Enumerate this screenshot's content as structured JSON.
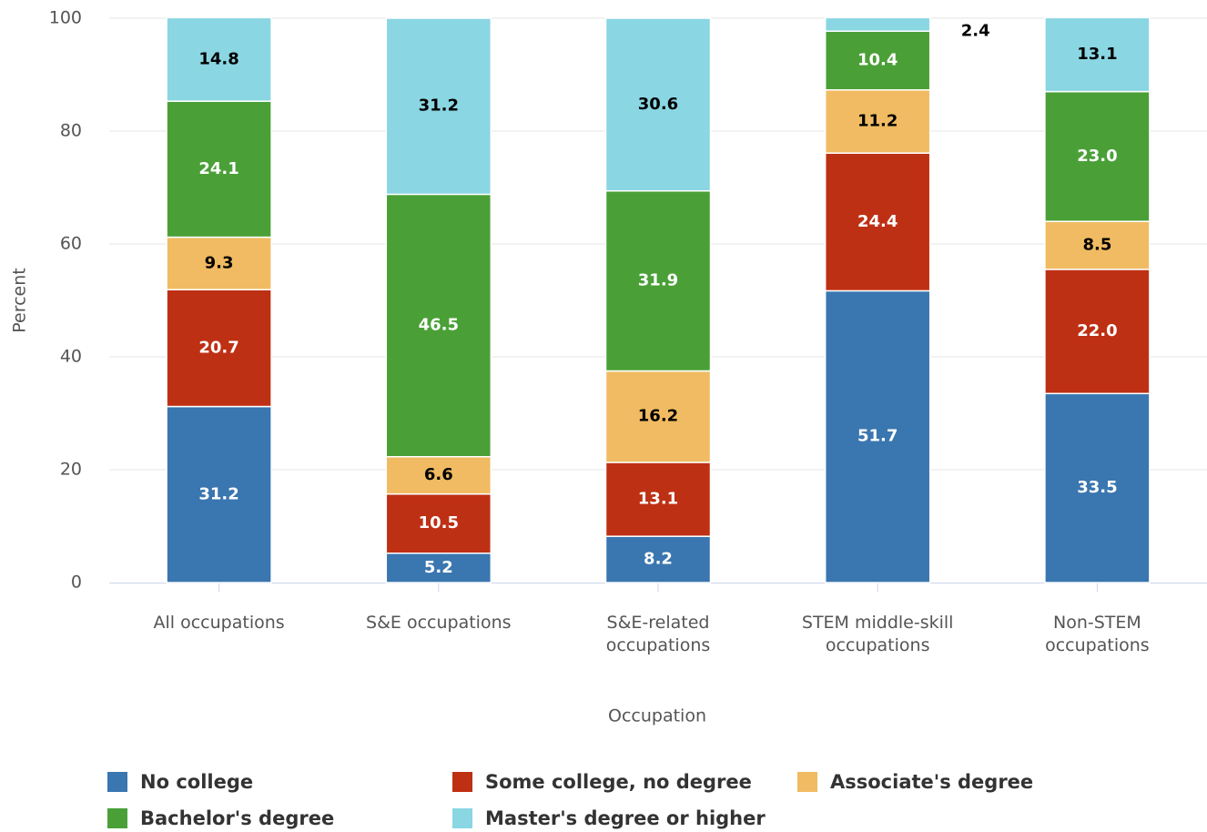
{
  "chart_data": {
    "type": "stacked_bar",
    "x_label": "Occupation",
    "y_label": "Percent",
    "categories": [
      "All occupations",
      "S&E occupations",
      "S&E-related occupations",
      "STEM middle-skill occupations",
      "Non-STEM occupations"
    ],
    "series": [
      {
        "name": "No college",
        "color": "#3a76af",
        "values": [
          31.2,
          5.2,
          8.2,
          51.7,
          33.5
        ],
        "value_labels": [
          "31.2",
          "5.2",
          "8.2",
          "51.7",
          "33.5"
        ]
      },
      {
        "name": "Some college, no degree",
        "color": "#be3014",
        "values": [
          20.7,
          10.5,
          13.1,
          24.4,
          22
        ],
        "value_labels": [
          "20.7",
          "10.5",
          "13.1",
          "24.4",
          "22.0"
        ]
      },
      {
        "name": "Associate's degree",
        "color": "#f0bb62",
        "values": [
          9.3,
          6.6,
          16.2,
          11.2,
          8.5
        ],
        "value_labels": [
          "9.3",
          "6.6",
          "16.2",
          "11.2",
          "8.5"
        ]
      },
      {
        "name": "Bachelor's degree",
        "color": "#4aa037",
        "values": [
          24.1,
          46.5,
          31.9,
          10.4,
          23
        ],
        "value_labels": [
          "24.1",
          "46.5",
          "31.9",
          "10.4",
          "23.0"
        ]
      },
      {
        "name": "Master's degree or higher",
        "color": "#8ad6e3",
        "values": [
          14.8,
          31.2,
          30.6,
          2.4,
          13.1
        ],
        "value_labels": [
          "14.8",
          "31.2",
          "30.6",
          "2.4",
          "13.1"
        ]
      }
    ],
    "ylim": [
      0,
      100
    ],
    "yticks": [
      0,
      20,
      40,
      60,
      80,
      100
    ],
    "grid": true,
    "legend": "bottom"
  }
}
